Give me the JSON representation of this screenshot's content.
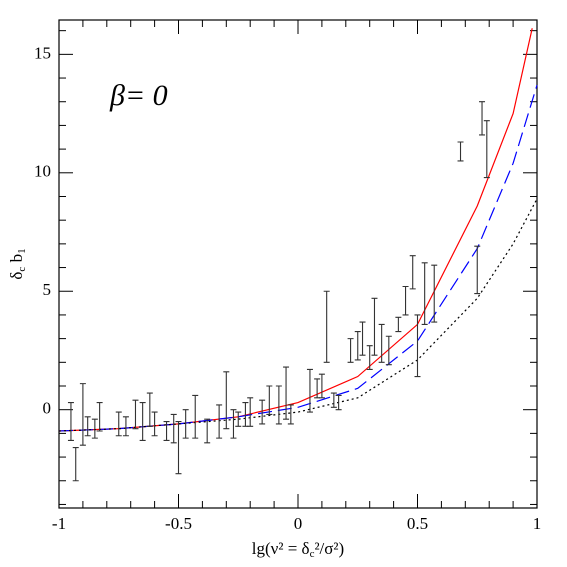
{
  "chart_data": {
    "type": "line",
    "annotation": "β=  0",
    "xlabel": [
      "lg(ν² = δ",
      "c",
      "²/σ²)"
    ],
    "ylabel": [
      "δ",
      "c",
      " b",
      "1"
    ],
    "xlim": [
      -1,
      1
    ],
    "ylim": [
      -4.15,
      16.45
    ],
    "xticks": [
      -1,
      -0.5,
      0,
      0.5,
      1
    ],
    "yticks": [
      0,
      5,
      10,
      15
    ],
    "xminorticks": [
      -0.9,
      -0.8,
      -0.7,
      -0.6,
      -0.4,
      -0.3,
      -0.2,
      -0.1,
      0.1,
      0.2,
      0.3,
      0.4,
      0.6,
      0.7,
      0.8,
      0.9
    ],
    "yminorticks": [
      -4,
      -3,
      -2,
      -1,
      1,
      2,
      3,
      4,
      6,
      7,
      8,
      9,
      11,
      12,
      13,
      14,
      16
    ],
    "series": [
      {
        "color": "#ff0000",
        "style": "solid",
        "x": [
          -1,
          -0.75,
          -0.5,
          -0.25,
          0,
          0.25,
          0.5,
          0.75,
          0.9,
          0.98
        ],
        "values": [
          -0.9,
          -0.8,
          -0.6,
          -0.3,
          0.3,
          1.4,
          3.6,
          8.6,
          12.5,
          16.1
        ]
      },
      {
        "color": "#0000ff",
        "style": "dashed",
        "x": [
          -1,
          -0.75,
          -0.5,
          -0.25,
          0,
          0.25,
          0.5,
          0.75,
          0.9,
          1
        ],
        "values": [
          -0.9,
          -0.8,
          -0.6,
          -0.3,
          0.1,
          0.9,
          2.9,
          6.8,
          10.4,
          13.7
        ]
      },
      {
        "color": "#000000",
        "style": "dotted",
        "x": [
          -1,
          -0.75,
          -0.5,
          -0.25,
          0,
          0.25,
          0.5,
          0.75,
          0.9,
          1
        ],
        "values": [
          -0.9,
          -0.8,
          -0.6,
          -0.4,
          -0.1,
          0.5,
          2.1,
          4.7,
          7.0,
          8.9
        ]
      }
    ],
    "points": {
      "color": "#333333",
      "x": [
        -0.93,
        -0.95,
        -0.9,
        -0.88,
        -0.85,
        -0.83,
        -0.75,
        -0.72,
        -0.68,
        -0.65,
        -0.62,
        -0.6,
        -0.55,
        -0.52,
        -0.5,
        -0.47,
        -0.43,
        -0.38,
        -0.33,
        -0.3,
        -0.27,
        -0.25,
        -0.22,
        -0.2,
        -0.15,
        -0.12,
        -0.08,
        -0.05,
        -0.03,
        0.05,
        0.08,
        0.1,
        0.12,
        0.15,
        0.17,
        0.22,
        0.25,
        0.27,
        0.3,
        0.32,
        0.35,
        0.38,
        0.42,
        0.45,
        0.48,
        0.5,
        0.53,
        0.57,
        0.68,
        0.75,
        0.77,
        0.79
      ],
      "values": [
        -2.3,
        -0.5,
        -0.2,
        -0.7,
        -0.8,
        -0.3,
        -0.6,
        -0.7,
        -0.2,
        -0.5,
        0,
        -0.6,
        -0.9,
        -0.8,
        -1.6,
        -0.6,
        -0.3,
        -0.9,
        -0.5,
        0.4,
        -0.6,
        -0.4,
        -0.2,
        -0.1,
        -0.1,
        0.4,
        0.2,
        0.7,
        -0.2,
        0.8,
        0.9,
        1.0,
        3.5,
        0.4,
        0.3,
        2.5,
        2.7,
        3.0,
        2.2,
        3.5,
        2.8,
        2.5,
        3.6,
        4.6,
        5.8,
        2.7,
        4.9,
        4.9,
        10.9,
        5.9,
        12.3,
        11.0
      ],
      "errors": [
        0.7,
        0.8,
        1.3,
        0.4,
        0.4,
        0.6,
        0.5,
        0.4,
        0.6,
        0.8,
        0.7,
        0.5,
        0.4,
        0.6,
        1.1,
        0.6,
        0.9,
        0.5,
        0.7,
        1.2,
        0.6,
        0.3,
        0.5,
        0.6,
        0.5,
        0.6,
        0.8,
        1.1,
        0.4,
        0.9,
        0.4,
        0.5,
        1.5,
        0.3,
        0.3,
        0.5,
        0.6,
        0.7,
        0.5,
        1.2,
        0.8,
        0.6,
        0.3,
        0.6,
        0.7,
        1.3,
        1.3,
        1.2,
        0.4,
        1.0,
        0.7,
        1.2
      ]
    }
  }
}
